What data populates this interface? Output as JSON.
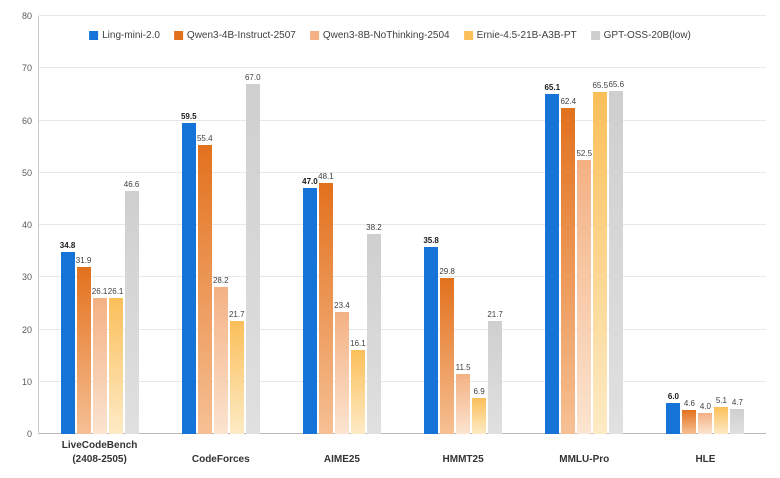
{
  "chart_data": {
    "type": "bar",
    "title": "",
    "xlabel": "",
    "ylabel": "",
    "ylim": [
      0,
      80
    ],
    "yticks": [
      0,
      10,
      20,
      30,
      40,
      50,
      60,
      70,
      80
    ],
    "grid": true,
    "legend_position": "top-center",
    "categories": [
      "LiveCodeBench\n(2408-2505)",
      "CodeForces",
      "AIME25",
      "HMMT25",
      "MMLU-Pro",
      "HLE"
    ],
    "series": [
      {
        "name": "Ling-mini-2.0",
        "color_top": "#1674d8",
        "color_bottom": "#1674d8",
        "bold_labels": true,
        "values": [
          34.8,
          59.5,
          47.0,
          35.8,
          65.1,
          6.0
        ]
      },
      {
        "name": "Qwen3-4B-Instruct-2507",
        "color_top": "#e2711d",
        "color_bottom": "#f6c094",
        "bold_labels": false,
        "values": [
          31.9,
          55.4,
          48.1,
          29.8,
          62.4,
          4.6
        ]
      },
      {
        "name": "Qwen3-8B-NoThinking-2504",
        "color_top": "#f4b183",
        "color_bottom": "#fbe4d0",
        "bold_labels": false,
        "values": [
          26.1,
          28.2,
          23.4,
          11.5,
          52.5,
          4.0
        ]
      },
      {
        "name": "Ernie-4.5-21B-A3B-PT",
        "color_top": "#fbbf5a",
        "color_bottom": "#fdebc5",
        "bold_labels": false,
        "values": [
          26.1,
          21.7,
          16.1,
          6.9,
          65.5,
          5.1
        ]
      },
      {
        "name": "GPT-OSS-20B(low)",
        "color_top": "#cfcfcf",
        "color_bottom": "#e0e0e0",
        "bold_labels": false,
        "values": [
          46.6,
          67.0,
          38.2,
          21.7,
          65.6,
          4.7
        ]
      }
    ]
  }
}
